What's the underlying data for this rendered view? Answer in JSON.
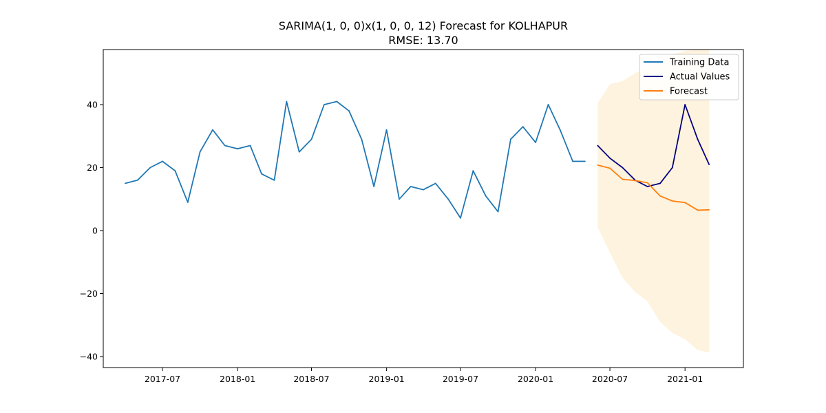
{
  "chart_data": {
    "type": "line",
    "title": "SARIMA(1, 0, 0)x(1, 0, 0, 12) Forecast for KOLHAPUR",
    "subtitle": "RMSE: 13.70",
    "xlabel": "",
    "ylabel": "",
    "x_range": [
      "2017-02-06",
      "2021-05-24"
    ],
    "ylim": [
      -43.5,
      57.5
    ],
    "x_ticks": [
      {
        "date": "2017-07-01",
        "label": "2017-07"
      },
      {
        "date": "2018-01-01",
        "label": "2018-01"
      },
      {
        "date": "2018-07-01",
        "label": "2018-07"
      },
      {
        "date": "2019-01-01",
        "label": "2019-01"
      },
      {
        "date": "2019-07-01",
        "label": "2019-07"
      },
      {
        "date": "2020-01-01",
        "label": "2020-01"
      },
      {
        "date": "2020-07-01",
        "label": "2020-07"
      },
      {
        "date": "2021-01-01",
        "label": "2021-01"
      }
    ],
    "y_ticks": [
      {
        "value": -40,
        "label": "−40"
      },
      {
        "value": -20,
        "label": "−20"
      },
      {
        "value": 0,
        "label": "0"
      },
      {
        "value": 20,
        "label": "20"
      },
      {
        "value": 40,
        "label": "40"
      }
    ],
    "grid": false,
    "legend_position": "top-right",
    "series": [
      {
        "name": "Training Data",
        "color": "#1f77b4",
        "x": [
          "2017-04-01",
          "2017-05-01",
          "2017-06-01",
          "2017-07-01",
          "2017-08-01",
          "2017-09-01",
          "2017-10-01",
          "2017-11-01",
          "2017-12-01",
          "2018-01-01",
          "2018-02-01",
          "2018-03-01",
          "2018-04-01",
          "2018-05-01",
          "2018-06-01",
          "2018-07-01",
          "2018-08-01",
          "2018-09-01",
          "2018-10-01",
          "2018-11-01",
          "2018-12-01",
          "2019-01-01",
          "2019-02-01",
          "2019-03-01",
          "2019-04-01",
          "2019-05-01",
          "2019-06-01",
          "2019-07-01",
          "2019-08-01",
          "2019-09-01",
          "2019-10-01",
          "2019-11-01",
          "2019-12-01",
          "2020-01-01",
          "2020-02-01",
          "2020-03-01",
          "2020-04-01",
          "2020-05-01"
        ],
        "y": [
          15,
          16,
          20,
          22,
          19,
          9,
          25,
          32,
          27,
          26,
          27,
          18,
          16,
          41,
          25,
          29,
          40,
          41,
          38,
          29,
          14,
          32,
          10,
          14,
          13,
          15,
          10,
          4,
          19,
          11,
          6,
          29,
          33,
          28,
          40,
          32,
          22,
          22
        ]
      },
      {
        "name": "Actual Values",
        "color": "#000080",
        "x": [
          "2020-06-01",
          "2020-07-01",
          "2020-08-01",
          "2020-09-01",
          "2020-10-01",
          "2020-11-01",
          "2020-12-01",
          "2021-01-01",
          "2021-02-01",
          "2021-03-01"
        ],
        "y": [
          27,
          23,
          20,
          16,
          14,
          15,
          20,
          40,
          29,
          21
        ]
      },
      {
        "name": "Forecast",
        "color": "#ff7f0e",
        "x": [
          "2020-06-01",
          "2020-07-01",
          "2020-08-01",
          "2020-09-01",
          "2020-10-01",
          "2020-11-01",
          "2020-12-01",
          "2021-01-01",
          "2021-02-01",
          "2021-03-01"
        ],
        "y": [
          20.8,
          19.8,
          16.3,
          15.9,
          15.2,
          11.0,
          9.4,
          8.9,
          6.5,
          6.6
        ]
      }
    ],
    "confidence_band": {
      "color": "#fdebc8",
      "x": [
        "2020-06-01",
        "2020-07-01",
        "2020-08-01",
        "2020-09-01",
        "2020-10-01",
        "2020-11-01",
        "2020-12-01",
        "2021-01-01",
        "2021-02-01",
        "2021-03-01"
      ],
      "lower": [
        1,
        -7,
        -15,
        -19.5,
        -22.5,
        -29,
        -32.5,
        -34.5,
        -38,
        -38.7
      ],
      "upper": [
        40.5,
        46.5,
        47.5,
        50,
        52,
        54,
        56,
        57,
        57.5,
        57.5
      ]
    }
  }
}
